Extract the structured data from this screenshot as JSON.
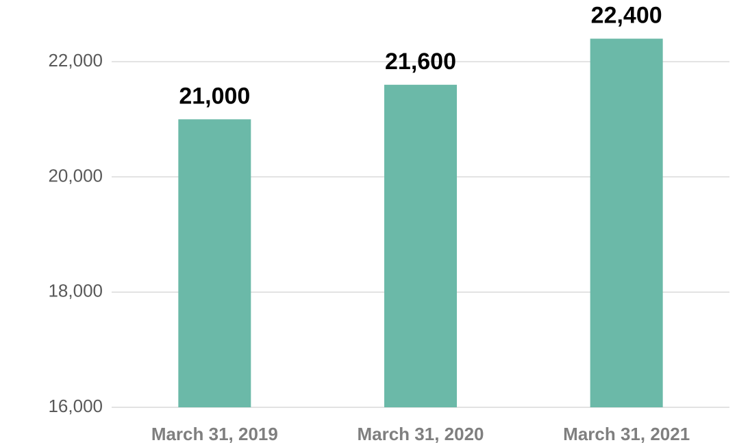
{
  "chart_data": {
    "type": "bar",
    "categories": [
      "March 31, 2019",
      "March 31, 2020",
      "March 31, 2021"
    ],
    "values": [
      21000,
      21600,
      22400
    ],
    "value_labels": [
      "21,000",
      "21,600",
      "22,400"
    ],
    "color": "#6bb9a8",
    "ylim": [
      16000,
      23000
    ],
    "yticks": [
      {
        "value": 16000,
        "label": "16,000"
      },
      {
        "value": 18000,
        "label": "18,000"
      },
      {
        "value": 20000,
        "label": "20,000"
      },
      {
        "value": 22000,
        "label": "22,000"
      }
    ],
    "grid": true
  }
}
